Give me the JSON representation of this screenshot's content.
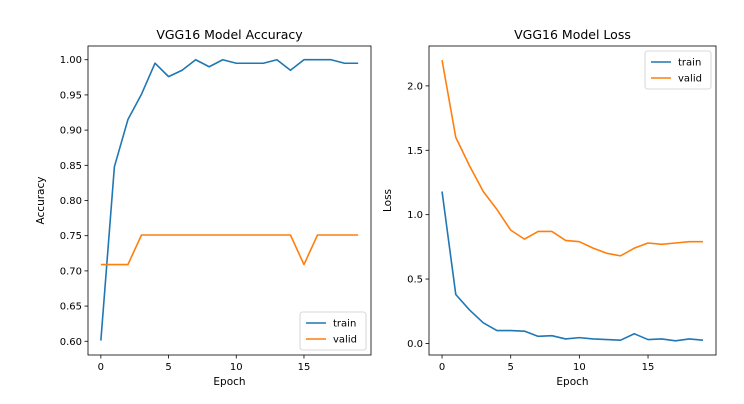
{
  "chart_data": [
    {
      "type": "line",
      "title": "VGG16 Model Accuracy",
      "xlabel": "Epoch",
      "ylabel": "Accuracy",
      "xlim": [
        -0.95,
        19.95
      ],
      "ylim": [
        0.5805,
        1.0195
      ],
      "xticks": [
        0,
        5,
        10,
        15
      ],
      "yticks": [
        0.6,
        0.65,
        0.7,
        0.75,
        0.8,
        0.85,
        0.9,
        0.95,
        1.0
      ],
      "ytick_labels": [
        "0.60",
        "0.65",
        "0.70",
        "0.75",
        "0.80",
        "0.85",
        "0.90",
        "0.95",
        "1.00"
      ],
      "legend_position": "lower-right",
      "grid": false,
      "x": [
        0,
        1,
        2,
        3,
        4,
        5,
        6,
        7,
        8,
        9,
        10,
        11,
        12,
        13,
        14,
        15,
        16,
        17,
        18,
        19
      ],
      "series": [
        {
          "name": "train",
          "color": "#1f77b4",
          "values": [
            0.601,
            0.848,
            0.915,
            0.951,
            0.995,
            0.976,
            0.985,
            1.0,
            0.99,
            1.0,
            0.995,
            0.995,
            0.995,
            1.0,
            0.985,
            1.0,
            1.0,
            1.0,
            0.995,
            0.995
          ]
        },
        {
          "name": "valid",
          "color": "#ff7f0e",
          "values": [
            0.709,
            0.709,
            0.709,
            0.751,
            0.751,
            0.751,
            0.751,
            0.751,
            0.751,
            0.751,
            0.751,
            0.751,
            0.751,
            0.751,
            0.751,
            0.709,
            0.751,
            0.751,
            0.751,
            0.751
          ]
        }
      ]
    },
    {
      "type": "line",
      "title": "VGG16 Model Loss",
      "xlabel": "Epoch",
      "ylabel": "Loss",
      "xlim": [
        -0.95,
        19.95
      ],
      "ylim": [
        -0.09,
        2.31
      ],
      "xticks": [
        0,
        5,
        10,
        15
      ],
      "yticks": [
        0.0,
        0.5,
        1.0,
        1.5,
        2.0
      ],
      "ytick_labels": [
        "0.0",
        "0.5",
        "1.0",
        "1.5",
        "2.0"
      ],
      "legend_position": "top-right",
      "grid": false,
      "x": [
        0,
        1,
        2,
        3,
        4,
        5,
        6,
        7,
        8,
        9,
        10,
        11,
        12,
        13,
        14,
        15,
        16,
        17,
        18,
        19
      ],
      "series": [
        {
          "name": "train",
          "color": "#1f77b4",
          "values": [
            1.18,
            0.38,
            0.26,
            0.16,
            0.1,
            0.1,
            0.095,
            0.055,
            0.06,
            0.035,
            0.045,
            0.035,
            0.03,
            0.025,
            0.075,
            0.03,
            0.035,
            0.02,
            0.035,
            0.025
          ]
        },
        {
          "name": "valid",
          "color": "#ff7f0e",
          "values": [
            2.2,
            1.6,
            1.38,
            1.18,
            1.04,
            0.88,
            0.81,
            0.87,
            0.87,
            0.8,
            0.79,
            0.74,
            0.7,
            0.68,
            0.74,
            0.78,
            0.77,
            0.78,
            0.79,
            0.79
          ]
        }
      ]
    }
  ]
}
